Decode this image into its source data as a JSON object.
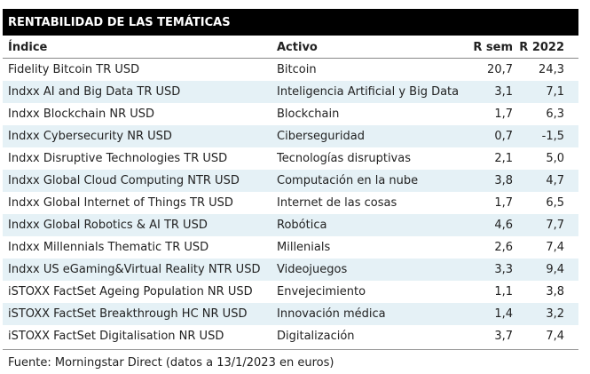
{
  "header": {
    "title": "RENTABILIDAD DE LAS TEMÁTICAS"
  },
  "table": {
    "columns": [
      "Índice",
      "Activo",
      "R sem",
      "R 2022"
    ],
    "rows": [
      [
        "Fidelity Bitcoin TR USD",
        "Bitcoin",
        "20,7",
        "24,3"
      ],
      [
        "Indxx AI and Big Data TR USD",
        "Inteligencia Artificial y Big Data",
        "3,1",
        "7,1"
      ],
      [
        "Indxx Blockchain NR USD",
        "Blockchain",
        "1,7",
        "6,3"
      ],
      [
        "Indxx Cybersecurity NR USD",
        "Ciberseguridad",
        "0,7",
        "-1,5"
      ],
      [
        "Indxx Disruptive Technologies TR USD",
        "Tecnologías disruptivas",
        "2,1",
        "5,0"
      ],
      [
        "Indxx Global Cloud Computing NTR USD",
        "Computación en la nube",
        "3,8",
        "4,7"
      ],
      [
        "Indxx Global Internet of Things TR USD",
        "Internet de las cosas",
        "1,7",
        "6,5"
      ],
      [
        "Indxx Global Robotics & AI TR USD",
        "Robótica",
        "4,6",
        "7,7"
      ],
      [
        "Indxx Millennials Thematic TR USD",
        "Millenials",
        "2,6",
        "7,4"
      ],
      [
        "Indxx US eGaming&Virtual Reality NTR USD",
        "Videojuegos",
        "3,3",
        "9,4"
      ],
      [
        "iSTOXX FactSet Ageing Population NR USD",
        "Envejecimiento",
        "1,1",
        "3,8"
      ],
      [
        "iSTOXX FactSet Breakthrough HC NR USD",
        "Innovación médica",
        "1,4",
        "3,2"
      ],
      [
        "iSTOXX FactSet Digitalisation NR USD",
        "Digitalización",
        "3,7",
        "7,4"
      ]
    ]
  },
  "footer": {
    "source": "Fuente: Morningstar Direct (datos a 13/1/2023 en euros)"
  }
}
